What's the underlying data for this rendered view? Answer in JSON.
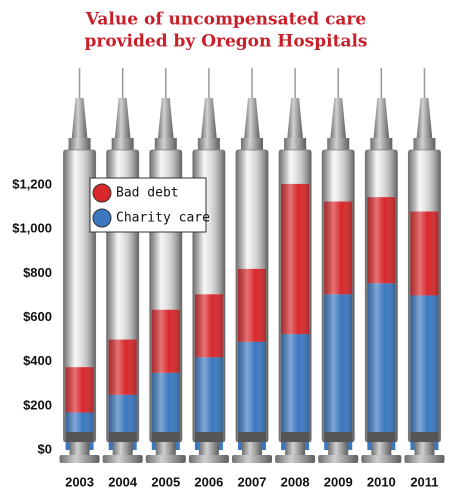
{
  "chart_data": {
    "type": "bar",
    "stacked": true,
    "title": [
      "Value of uncompensated care",
      "provided by Oregon Hospitals"
    ],
    "categories": [
      "2003",
      "2004",
      "2005",
      "2006",
      "2007",
      "2008",
      "2009",
      "2010",
      "2011"
    ],
    "series": [
      {
        "name": "Charity care",
        "color": "#3b78c0",
        "values": [
          170,
          250,
          350,
          420,
          490,
          525,
          705,
          755,
          700
        ]
      },
      {
        "name": "Bad debt",
        "color": "#d8282b",
        "values": [
          205,
          250,
          285,
          285,
          330,
          680,
          420,
          390,
          380
        ]
      }
    ],
    "legend_order": [
      1,
      0
    ],
    "ylim": [
      0,
      1200
    ],
    "yticks": [
      {
        "value": 0,
        "label": "$0"
      },
      {
        "value": 200,
        "label": "$200"
      },
      {
        "value": 400,
        "label": "$400"
      },
      {
        "value": 600,
        "label": "$600"
      },
      {
        "value": 800,
        "label": "$800"
      },
      {
        "value": 1000,
        "label": "$1,000"
      },
      {
        "value": 1200,
        "label": "$1,200"
      }
    ],
    "grid": false,
    "legend": "upper left"
  }
}
